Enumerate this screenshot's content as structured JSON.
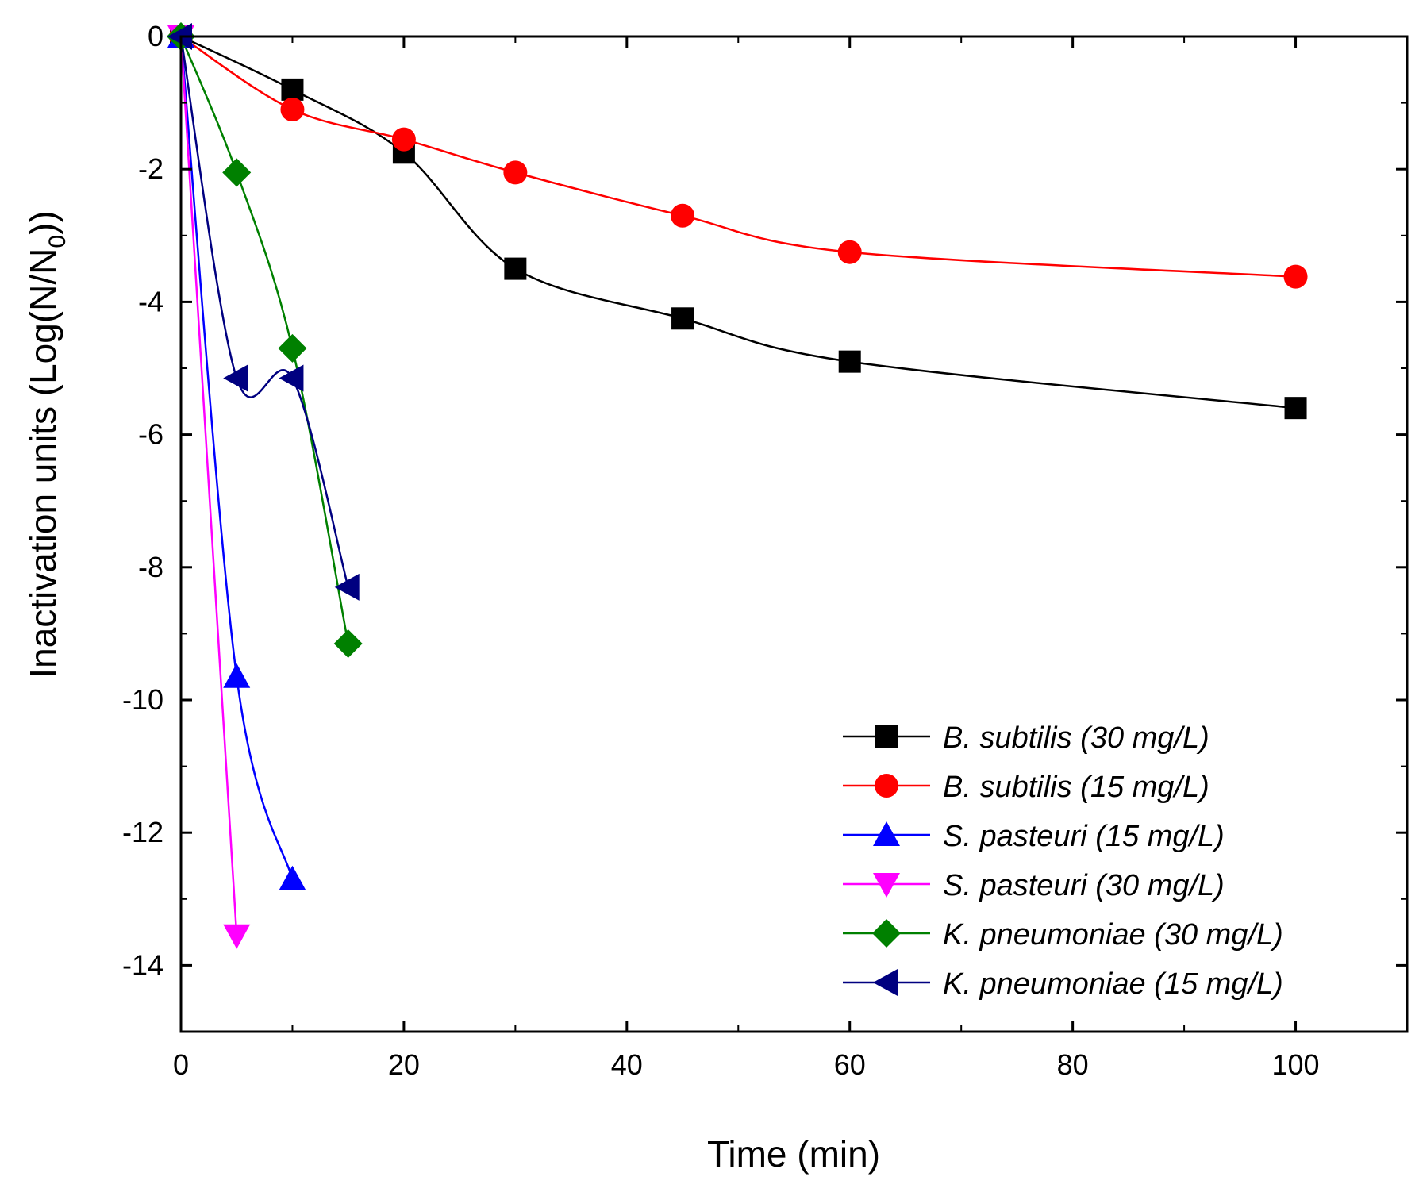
{
  "chart_data": {
    "type": "line",
    "xlabel": "Time (min)",
    "ylabel": "Inactivation units (Log(N/N",
    "ylabel_sub": "0",
    "ylabel_tail": "))",
    "xlim": [
      0,
      110
    ],
    "ylim": [
      -15,
      0
    ],
    "xticks": [
      0,
      20,
      40,
      60,
      80,
      100
    ],
    "xtick_labels": [
      "0",
      "20",
      "40",
      "60",
      "80",
      "100"
    ],
    "yticks": [
      0,
      -2,
      -4,
      -6,
      -8,
      -10,
      -12,
      -14
    ],
    "ytick_labels": [
      "0",
      "-2",
      "-4",
      "-6",
      "-8",
      "-10",
      "-12",
      "-14"
    ],
    "grid": false,
    "legend_position": "bottom-right",
    "series": [
      {
        "name": "B. subtilis (30 mg/L)",
        "color": "#000000",
        "marker": "square",
        "x": [
          0,
          10,
          20,
          30,
          45,
          60,
          100
        ],
        "y": [
          0,
          -0.8,
          -1.75,
          -3.5,
          -4.25,
          -4.9,
          -5.6
        ]
      },
      {
        "name": "B. subtilis (15 mg/L)",
        "color": "#ff0000",
        "marker": "circle",
        "x": [
          0,
          10,
          20,
          30,
          45,
          60,
          100
        ],
        "y": [
          0,
          -1.1,
          -1.55,
          -2.05,
          -2.7,
          -3.25,
          -3.62
        ]
      },
      {
        "name": "S. pasteuri (15 mg/L)",
        "color": "#0000ff",
        "marker": "triangle-up",
        "x": [
          0,
          5,
          10
        ],
        "y": [
          0,
          -9.65,
          -12.7
        ]
      },
      {
        "name": "S. pasteuri (30 mg/L)",
        "color": "#ff00ff",
        "marker": "triangle-down",
        "x": [
          0,
          5
        ],
        "y": [
          0,
          -13.55
        ]
      },
      {
        "name": "K. pneumoniae (30 mg/L)",
        "color": "#008000",
        "marker": "diamond",
        "x": [
          0,
          5,
          10,
          15
        ],
        "y": [
          0,
          -2.05,
          -4.7,
          -9.15
        ]
      },
      {
        "name": "K. pneumoniae (15 mg/L)",
        "color": "#000080",
        "marker": "triangle-left",
        "x": [
          0,
          5,
          10,
          15
        ],
        "y": [
          0,
          -5.15,
          -5.15,
          -8.3
        ]
      }
    ]
  }
}
